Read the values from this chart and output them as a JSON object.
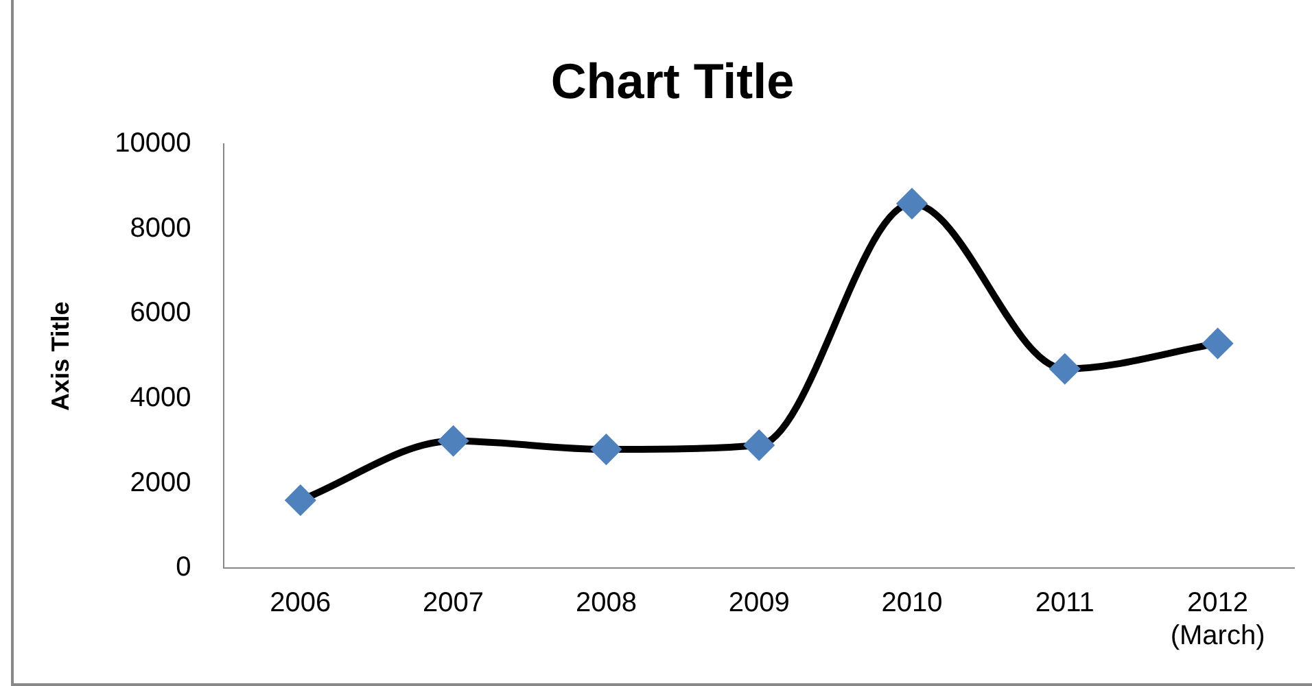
{
  "chart_data": {
    "type": "line",
    "title": "Chart Title",
    "ylabel": "Axis Title",
    "categories": [
      "2006",
      "2007",
      "2008",
      "2009",
      "2010",
      "2011",
      "2012 (March)"
    ],
    "series": [
      {
        "color": "#000000",
        "colors": [
          "#4f81bd",
          "#4f81bd",
          "#4f81bd",
          "#4f81bd",
          "#4f81bd",
          "#4f81bd",
          "#4f81bd"
        ],
        "values": [
          1600,
          3000,
          2800,
          2900,
          8600,
          4700,
          5300
        ]
      }
    ],
    "ylim": [
      0,
      10000
    ],
    "yticks": [
      0,
      2000,
      4000,
      6000,
      8000,
      10000
    ],
    "grid": false,
    "legend": false,
    "marker": "diamond",
    "line_style": "solid"
  }
}
